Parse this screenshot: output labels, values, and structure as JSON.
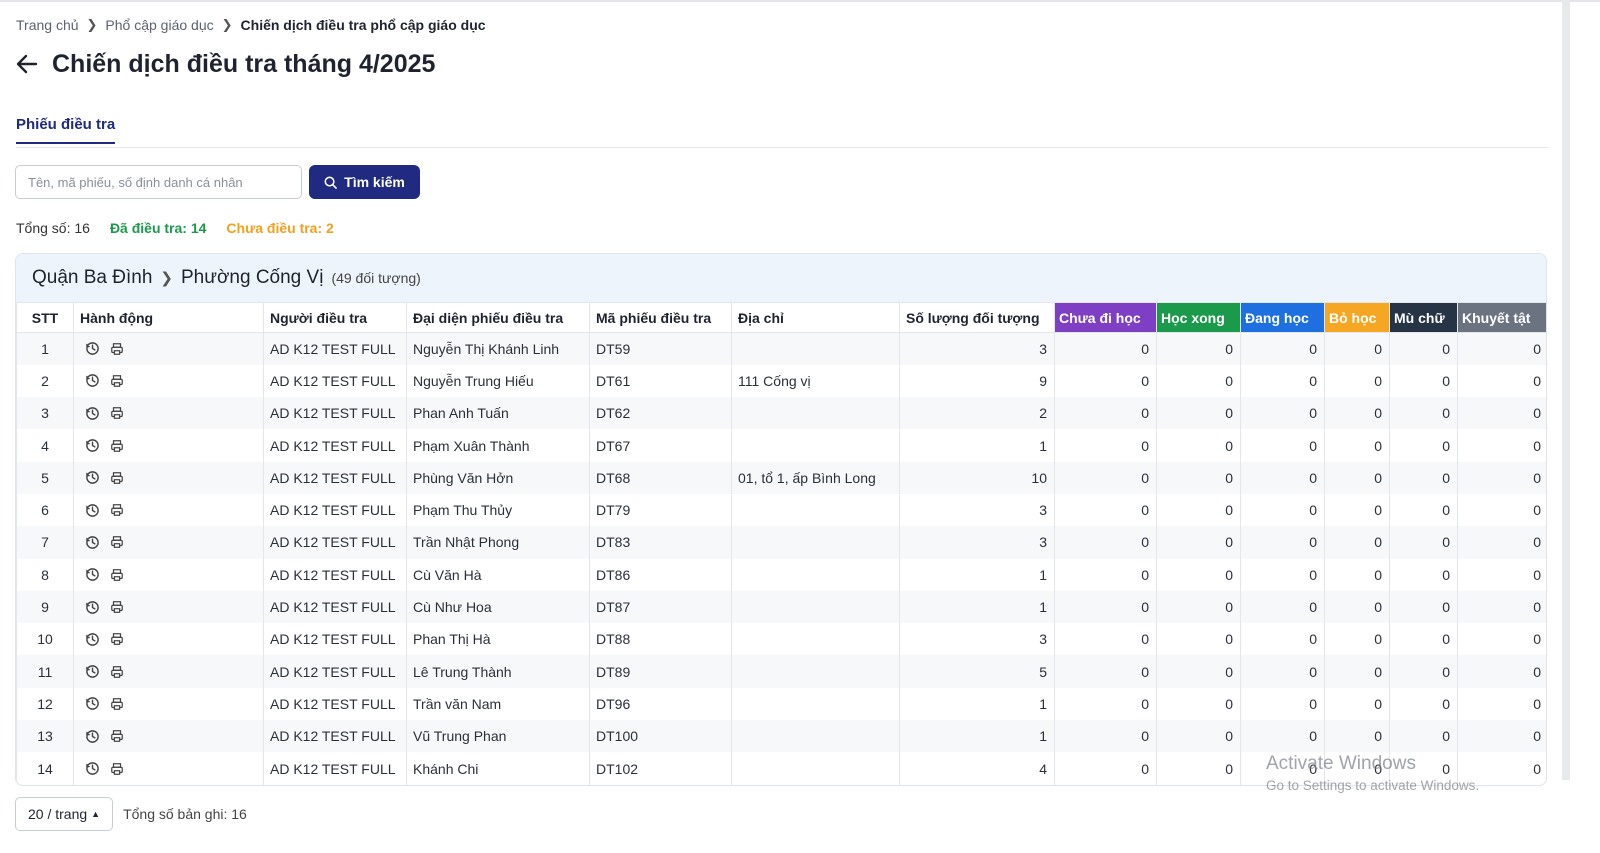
{
  "breadcrumb": {
    "home": "Trang chủ",
    "section": "Phổ cập giáo dục",
    "current": "Chiến dịch điều tra phổ cập giáo dục"
  },
  "page": {
    "title": "Chiến dịch điều tra tháng 4/2025"
  },
  "tabs": [
    {
      "label": "Phiếu điều tra"
    }
  ],
  "search": {
    "placeholder": "Tên, mã phiếu, số định danh cá nhân",
    "button_label": "Tìm kiếm"
  },
  "stats": {
    "total": "Tổng số: 16",
    "done": "Đã điều tra: 14",
    "pending": "Chưa điều tra: 2"
  },
  "group": {
    "district": "Quận Ba Đình",
    "ward": "Phường Cống Vị",
    "count": "(49 đối tượng)"
  },
  "columns": [
    "STT",
    "Hành động",
    "Người điều tra",
    "Đại diện phiếu điều tra",
    "Mã phiếu điều tra",
    "Địa chỉ",
    "Số lượng đối tượng",
    "Chưa đi học",
    "Học xong",
    "Đang học",
    "Bỏ học",
    "Mù chữ",
    "Khuyết tật"
  ],
  "column_colors": {
    "Chưa đi học": "#7e3fc4",
    "Học xong": "#1c9a4b",
    "Đang học": "#1e6fe0",
    "Bỏ học": "#f5a623",
    "Mù chữ": "#263445",
    "Khuyết tật": "#6b7280"
  },
  "rows": [
    [
      "1",
      "AD K12 TEST FULL",
      "Nguyễn Thị Khánh Linh",
      "DT59",
      "",
      "3",
      "0",
      "0",
      "0",
      "0",
      "0",
      "0"
    ],
    [
      "2",
      "AD K12 TEST FULL",
      "Nguyễn Trung Hiếu",
      "DT61",
      "111 Cống vị",
      "9",
      "0",
      "0",
      "0",
      "0",
      "0",
      "0"
    ],
    [
      "3",
      "AD K12 TEST FULL",
      "Phan Anh Tuấn",
      "DT62",
      "",
      "2",
      "0",
      "0",
      "0",
      "0",
      "0",
      "0"
    ],
    [
      "4",
      "AD K12 TEST FULL",
      "Phạm Xuân Thành",
      "DT67",
      "",
      "1",
      "0",
      "0",
      "0",
      "0",
      "0",
      "0"
    ],
    [
      "5",
      "AD K12 TEST FULL",
      "Phùng Văn Hởn",
      "DT68",
      "01, tổ 1, ấp Bình Long",
      "10",
      "0",
      "0",
      "0",
      "0",
      "0",
      "0"
    ],
    [
      "6",
      "AD K12 TEST FULL",
      "Phạm Thu Thủy",
      "DT79",
      "",
      "3",
      "0",
      "0",
      "0",
      "0",
      "0",
      "0"
    ],
    [
      "7",
      "AD K12 TEST FULL",
      "Trần Nhật Phong",
      "DT83",
      "",
      "3",
      "0",
      "0",
      "0",
      "0",
      "0",
      "0"
    ],
    [
      "8",
      "AD K12 TEST FULL",
      "Cù Văn Hà",
      "DT86",
      "",
      "1",
      "0",
      "0",
      "0",
      "0",
      "0",
      "0"
    ],
    [
      "9",
      "AD K12 TEST FULL",
      "Cù Như Hoa",
      "DT87",
      "",
      "1",
      "0",
      "0",
      "0",
      "0",
      "0",
      "0"
    ],
    [
      "10",
      "AD K12 TEST FULL",
      "Phan Thị Hà",
      "DT88",
      "",
      "3",
      "0",
      "0",
      "0",
      "0",
      "0",
      "0"
    ],
    [
      "11",
      "AD K12 TEST FULL",
      "Lê Trung Thành",
      "DT89",
      "",
      "5",
      "0",
      "0",
      "0",
      "0",
      "0",
      "0"
    ],
    [
      "12",
      "AD K12 TEST FULL",
      "Trần văn Nam",
      "DT96",
      "",
      "1",
      "0",
      "0",
      "0",
      "0",
      "0",
      "0"
    ],
    [
      "13",
      "AD K12 TEST FULL",
      "Vũ Trung Phan",
      "DT100",
      "",
      "1",
      "0",
      "0",
      "0",
      "0",
      "0",
      "0"
    ],
    [
      "14",
      "AD K12 TEST FULL",
      "Khánh Chi",
      "DT102",
      "",
      "4",
      "0",
      "0",
      "0",
      "0",
      "0",
      "0"
    ]
  ],
  "row_actions": [
    "history-icon",
    "print-icon"
  ],
  "footer": {
    "page_size": "20 / trang",
    "records": "Tổng số bản ghi: 16"
  },
  "watermark": {
    "line1": "Activate Windows",
    "line2": "Go to Settings to activate Windows."
  }
}
